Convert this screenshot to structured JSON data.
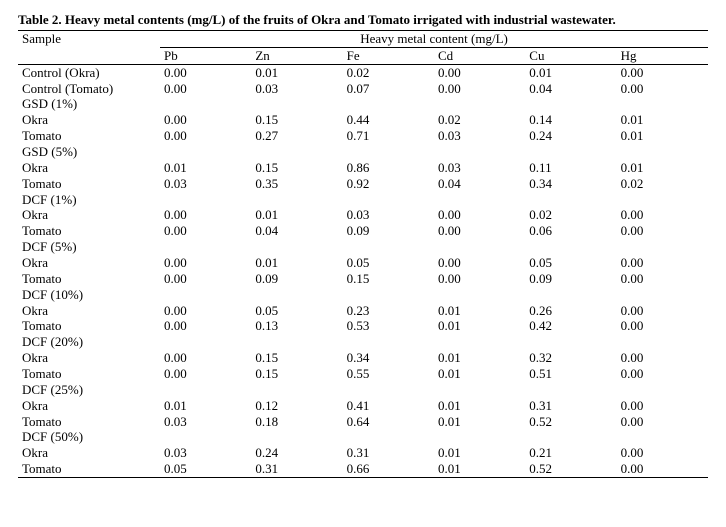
{
  "caption": "Table 2. Heavy metal contents (mg/L) of the fruits of Okra and Tomato irrigated with industrial wastewater.",
  "header": {
    "sample": "Sample",
    "group": "Heavy metal content (mg/L)",
    "metals": [
      "Pb",
      "Zn",
      "Fe",
      "Cd",
      "Cu",
      "Hg"
    ]
  },
  "rows": [
    {
      "label": "Control (Okra)",
      "v": [
        "0.00",
        "0.01",
        "0.02",
        "0.00",
        "0.01",
        "0.00"
      ]
    },
    {
      "label": "Control (Tomato)",
      "v": [
        "0.00",
        "0.03",
        "0.07",
        "0.00",
        "0.04",
        "0.00"
      ]
    },
    {
      "label": "GSD (1%)",
      "v": null
    },
    {
      "label": "Okra",
      "v": [
        "0.00",
        "0.15",
        "0.44",
        "0.02",
        "0.14",
        "0.01"
      ]
    },
    {
      "label": "Tomato",
      "v": [
        "0.00",
        "0.27",
        "0.71",
        "0.03",
        "0.24",
        "0.01"
      ]
    },
    {
      "label": "GSD (5%)",
      "v": null
    },
    {
      "label": "Okra",
      "v": [
        "0.01",
        "0.15",
        "0.86",
        "0.03",
        "0.11",
        "0.01"
      ]
    },
    {
      "label": "Tomato",
      "v": [
        "0.03",
        "0.35",
        "0.92",
        "0.04",
        "0.34",
        "0.02"
      ]
    },
    {
      "label": "DCF (1%)",
      "v": null
    },
    {
      "label": "Okra",
      "v": [
        "0.00",
        "0.01",
        "0.03",
        "0.00",
        "0.02",
        "0.00"
      ]
    },
    {
      "label": "Tomato",
      "v": [
        "0.00",
        "0.04",
        "0.09",
        "0.00",
        "0.06",
        "0.00"
      ]
    },
    {
      "label": "DCF (5%)",
      "v": null
    },
    {
      "label": "Okra",
      "v": [
        "0.00",
        "0.01",
        "0.05",
        "0.00",
        "0.05",
        "0.00"
      ]
    },
    {
      "label": "Tomato",
      "v": [
        "0.00",
        "0.09",
        "0.15",
        "0.00",
        "0.09",
        "0.00"
      ]
    },
    {
      "label": "DCF (10%)",
      "v": null
    },
    {
      "label": "Okra",
      "v": [
        "0.00",
        "0.05",
        "0.23",
        "0.01",
        "0.26",
        "0.00"
      ]
    },
    {
      "label": "Tomato",
      "v": [
        "0.00",
        "0.13",
        "0.53",
        "0.01",
        "0.42",
        "0.00"
      ]
    },
    {
      "label": "DCF (20%)",
      "v": null
    },
    {
      "label": "Okra",
      "v": [
        "0.00",
        "0.15",
        "0.34",
        "0.01",
        "0.32",
        "0.00"
      ]
    },
    {
      "label": "Tomato",
      "v": [
        "0.00",
        "0.15",
        "0.55",
        "0.01",
        "0.51",
        "0.00"
      ]
    },
    {
      "label": "DCF (25%)",
      "v": null
    },
    {
      "label": "Okra",
      "v": [
        "0.01",
        "0.12",
        "0.41",
        "0.01",
        "0.31",
        "0.00"
      ]
    },
    {
      "label": "Tomato",
      "v": [
        "0.03",
        "0.18",
        "0.64",
        "0.01",
        "0.52",
        "0.00"
      ]
    },
    {
      "label": "DCF (50%)",
      "v": null
    },
    {
      "label": "Okra",
      "v": [
        "0.03",
        "0.24",
        "0.31",
        "0.01",
        "0.21",
        "0.00"
      ]
    },
    {
      "label": "Tomato",
      "v": [
        "0.05",
        "0.31",
        "0.66",
        "0.01",
        "0.52",
        "0.00"
      ]
    }
  ]
}
